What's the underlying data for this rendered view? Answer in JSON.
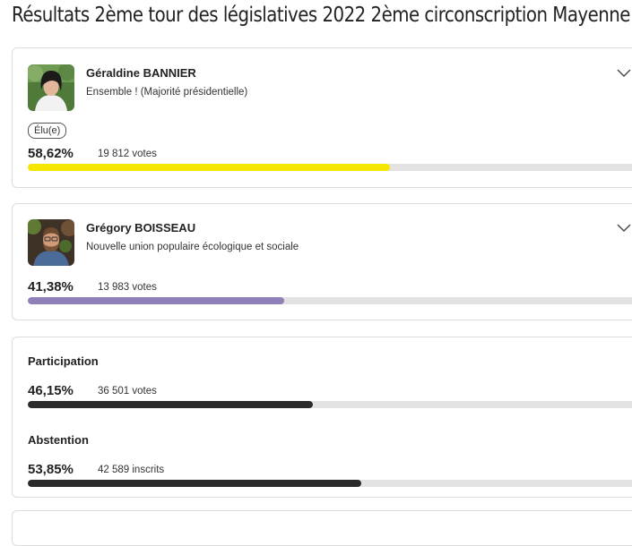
{
  "page": {
    "title": "Résultats 2ème tour des législatives 2022 2ème circonscription Mayenne"
  },
  "candidates": [
    {
      "name": "Géraldine BANNIER",
      "party": "Ensemble ! (Majorité présidentielle)",
      "badge": "Élu(e)",
      "percent_label": "58,62%",
      "votes_label": "19 812 votes",
      "share": 0.5862,
      "bar_color": "#f7e600"
    },
    {
      "name": "Grégory BOISSEAU",
      "party": "Nouvelle union populaire écologique et sociale",
      "percent_label": "41,38%",
      "votes_label": "13 983 votes",
      "share": 0.4138,
      "bar_color": "#8e80b8"
    }
  ],
  "participation": {
    "label": "Participation",
    "percent_label": "46,15%",
    "count_label": "36 501 votes",
    "share": 0.4615,
    "bar_color": "#2b2b2b"
  },
  "abstention": {
    "label": "Abstention",
    "percent_label": "53,85%",
    "count_label": "42 589 inscrits",
    "share": 0.5385,
    "bar_color": "#2b2b2b"
  },
  "icons": {
    "expand": "chevron-down-icon"
  }
}
